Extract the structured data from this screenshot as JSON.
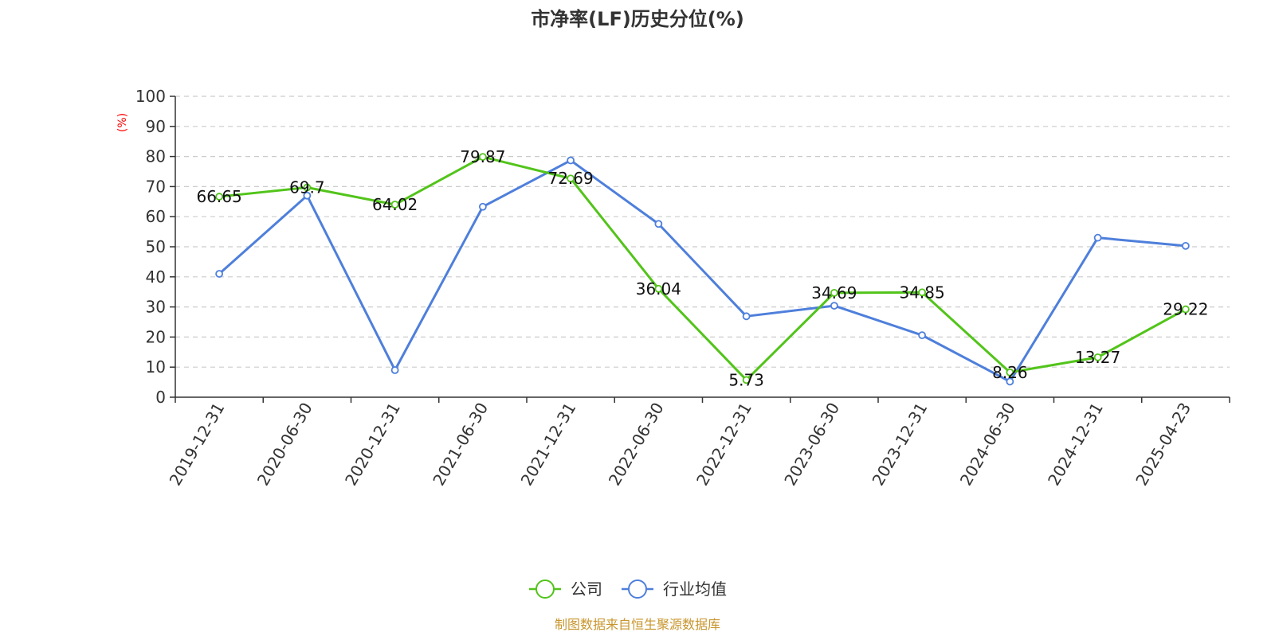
{
  "chart_data": {
    "type": "line",
    "title": "市净率(LF)历史分位(%)",
    "ylabel": "(%)",
    "xlabel": "",
    "ylim": [
      0,
      100
    ],
    "yticks": [
      0,
      10,
      20,
      30,
      40,
      50,
      60,
      70,
      80,
      90,
      100
    ],
    "grid": true,
    "legend_position": "bottom-center",
    "categories": [
      "2019-12-31",
      "2020-06-30",
      "2020-12-31",
      "2021-06-30",
      "2021-12-31",
      "2022-06-30",
      "2022-12-31",
      "2023-06-30",
      "2023-12-31",
      "2024-06-30",
      "2024-12-31",
      "2025-04-23"
    ],
    "series": [
      {
        "name": "公司",
        "color": "#52c41a",
        "values": [
          66.65,
          69.7,
          64.02,
          79.87,
          72.69,
          36.04,
          5.73,
          34.69,
          34.85,
          8.26,
          13.27,
          29.22
        ],
        "labels": [
          "66.65",
          "69.7",
          "64.02",
          "79.87",
          "72.69",
          "36.04",
          "5.73",
          "34.69",
          "34.85",
          "8.26",
          "13.27",
          "29.22"
        ]
      },
      {
        "name": "行业均值",
        "color": "#4e7fdb",
        "values": [
          41,
          67,
          9,
          63.3,
          78.7,
          57.6,
          26.9,
          30.4,
          20.6,
          5.2,
          53,
          50.3
        ]
      }
    ],
    "source": "制图数据来自恒生聚源数据库",
    "source_color": "#c8962e",
    "ylabel_color": "#ff0000"
  }
}
